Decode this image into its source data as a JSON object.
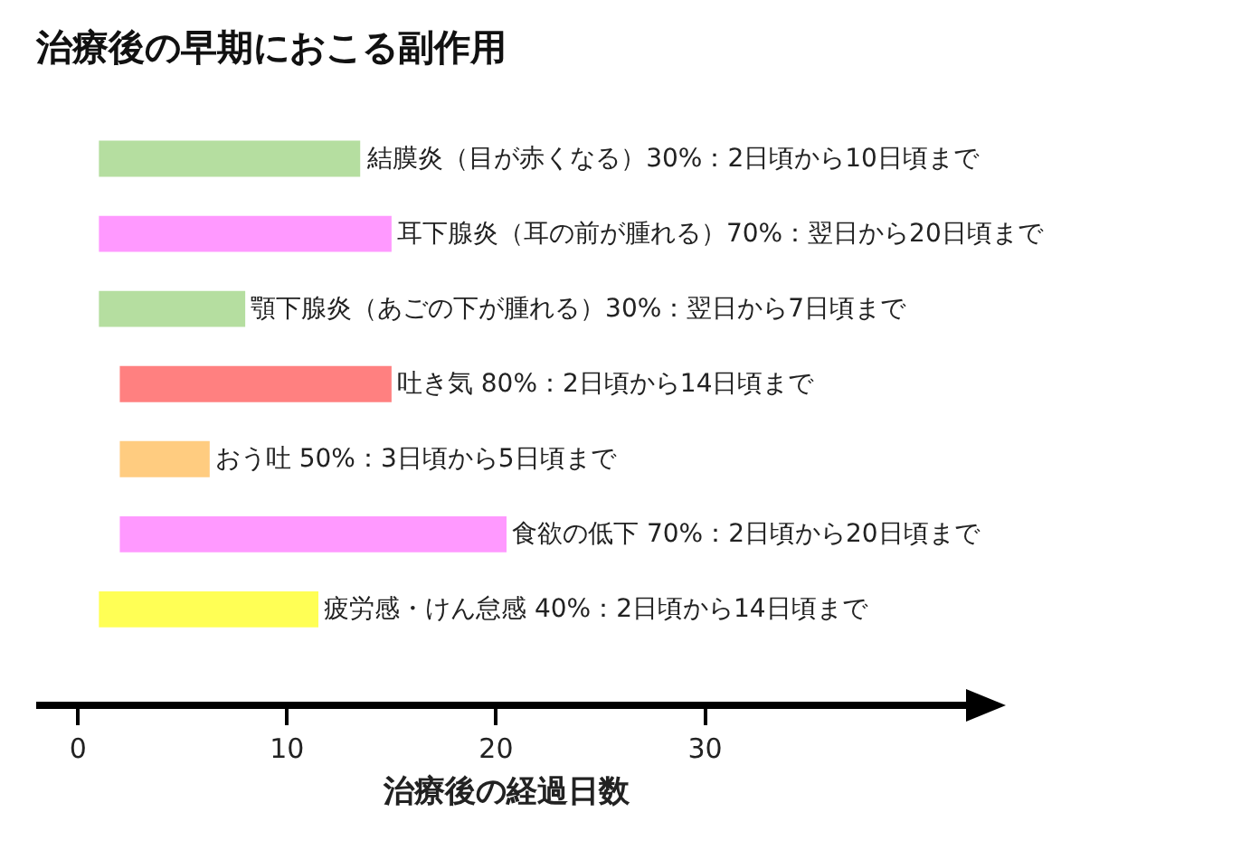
{
  "chart_data": {
    "type": "bar",
    "orientation": "horizontal",
    "title": "治療後の早期におこる副作用",
    "xlabel": "治療後の経過日数",
    "categories": [
      "結膜炎（目が赤くなる）30%：2日頃から10日頃まで",
      "耳下腺炎（耳の前が腫れる）70%：翌日から20日頃まで",
      "顎下腺炎（あごの下が腫れる）30%：翌日から7日頃まで",
      "吐き気 80%：2日頃から14日頃まで",
      "おう吐 50%：3日頃から5日頃まで",
      "食欲の低下 70%：2日頃から20日頃まで",
      "疲労感・けん怠感 40%：2日頃から14日頃まで"
    ],
    "base": [
      1,
      1,
      1,
      2,
      2,
      2,
      1
    ],
    "values": [
      12.5,
      14,
      7,
      13,
      4.3,
      18.5,
      10.5
    ],
    "colors": [
      "#b5dea0",
      "#ff99ff",
      "#b5dea0",
      "#ff8080",
      "#ffcc80",
      "#ff99ff",
      "#ffff55"
    ],
    "xlim": [
      -2,
      43
    ],
    "xticks": [
      0,
      10,
      20,
      30
    ]
  }
}
